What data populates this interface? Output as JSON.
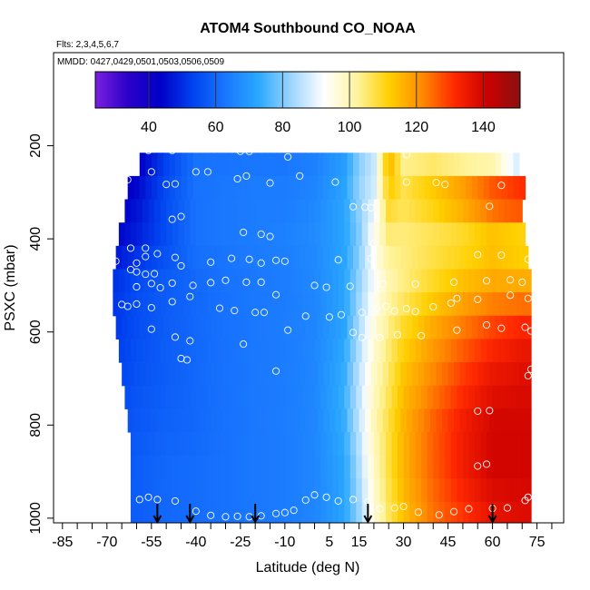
{
  "chart_data": {
    "type": "heatmap",
    "title": "ATOM4 Southbound CO_NOAA",
    "flights_note": "Flts: 2,3,4,5,6,7",
    "dates_note": "MMDD: 0427,0429,0501,0503,0506,0509",
    "xlabel": "Latitude (deg N)",
    "ylabel": "PSXC (mbar)",
    "xlim": [
      -88,
      84
    ],
    "ylim": [
      1010,
      0
    ],
    "x_ticks": [
      -85,
      -70,
      -55,
      -40,
      -25,
      -10,
      5,
      15,
      30,
      45,
      60,
      75
    ],
    "y_ticks": [
      200,
      400,
      600,
      800,
      1000
    ],
    "colorbar": {
      "min": 24,
      "max": 151,
      "ticks": [
        40,
        60,
        80,
        100,
        120,
        140
      ],
      "separators": [
        40,
        60,
        80,
        100,
        120,
        140
      ],
      "colors": [
        "#7b20e0",
        "#2a00c8",
        "#0000c8",
        "#0044f0",
        "#1a78ff",
        "#2aa8ff",
        "#9dd6ff",
        "#ffffff",
        "#fff4a0",
        "#ffd000",
        "#ff8a00",
        "#ff2800",
        "#cc0000",
        "#8a1010"
      ]
    },
    "layers": [
      {
        "p": 240,
        "lat_min": -59,
        "lat_max": 69
      },
      {
        "p": 290,
        "lat_min": -63,
        "lat_max": 71
      },
      {
        "p": 340,
        "lat_min": -64,
        "lat_max": 70
      },
      {
        "p": 390,
        "lat_min": -66,
        "lat_max": 71
      },
      {
        "p": 440,
        "lat_min": -67,
        "lat_max": 72
      },
      {
        "p": 490,
        "lat_min": -68,
        "lat_max": 73
      },
      {
        "p": 540,
        "lat_min": -68,
        "lat_max": 73
      },
      {
        "p": 590,
        "lat_min": -67,
        "lat_max": 73
      },
      {
        "p": 640,
        "lat_min": -66,
        "lat_max": 73
      },
      {
        "p": 690,
        "lat_min": -65,
        "lat_max": 73
      },
      {
        "p": 740,
        "lat_min": -64,
        "lat_max": 73
      },
      {
        "p": 790,
        "lat_min": -63,
        "lat_max": 73
      },
      {
        "p": 840,
        "lat_min": -62,
        "lat_max": 73
      },
      {
        "p": 890,
        "lat_min": -62,
        "lat_max": 73
      },
      {
        "p": 940,
        "lat_min": -62,
        "lat_max": 73
      },
      {
        "p": 990,
        "lat_min": -62,
        "lat_max": 73
      }
    ],
    "field": {
      "lat_nodes": [
        -70,
        -60,
        -50,
        -40,
        -30,
        -20,
        -10,
        0,
        10,
        15,
        20,
        25,
        30,
        40,
        50,
        60,
        70
      ],
      "p_nodes": [
        200,
        300,
        400,
        500,
        600,
        700,
        800,
        900,
        1000
      ],
      "values": [
        [
          38,
          40,
          52,
          62,
          62,
          62,
          62,
          64,
          70,
          80,
          86,
          120,
          100,
          100,
          90,
          80,
          50
        ],
        [
          40,
          45,
          55,
          62,
          63,
          64,
          64,
          66,
          72,
          82,
          88,
          112,
          108,
          114,
          122,
          132,
          140
        ],
        [
          42,
          48,
          55,
          62,
          63,
          64,
          65,
          67,
          72,
          80,
          94,
          104,
          104,
          106,
          108,
          112,
          108
        ],
        [
          50,
          55,
          58,
          60,
          62,
          63,
          64,
          66,
          72,
          82,
          92,
          100,
          104,
          110,
          115,
          118,
          118
        ],
        [
          50,
          55,
          58,
          60,
          62,
          63,
          64,
          66,
          72,
          84,
          96,
          104,
          110,
          118,
          124,
          130,
          134
        ],
        [
          52,
          56,
          58,
          60,
          62,
          63,
          64,
          66,
          74,
          86,
          98,
          106,
          114,
          122,
          130,
          136,
          138
        ],
        [
          54,
          57,
          59,
          60,
          62,
          63,
          64,
          66,
          74,
          86,
          100,
          108,
          116,
          126,
          134,
          140,
          140
        ],
        [
          55,
          58,
          60,
          61,
          62,
          63,
          64,
          66,
          72,
          84,
          98,
          108,
          116,
          126,
          134,
          140,
          140
        ],
        [
          56,
          58,
          60,
          61,
          62,
          63,
          64,
          66,
          72,
          82,
          96,
          106,
          114,
          124,
          130,
          136,
          138
        ]
      ]
    },
    "observation_points": [
      [
        -67,
        205
      ],
      [
        -56,
        210
      ],
      [
        -48,
        210
      ],
      [
        -25,
        212
      ],
      [
        -22,
        212
      ],
      [
        -9,
        224
      ],
      [
        31,
        219
      ],
      [
        65,
        205
      ],
      [
        69,
        206
      ],
      [
        -77,
        240
      ],
      [
        -75,
        241
      ],
      [
        -68,
        228
      ],
      [
        -65,
        231
      ],
      [
        -64,
        239
      ],
      [
        -61,
        246
      ],
      [
        -55,
        256
      ],
      [
        -40,
        256
      ],
      [
        -36,
        256
      ],
      [
        -26,
        271
      ],
      [
        -5,
        265
      ],
      [
        7,
        278
      ],
      [
        31,
        278
      ],
      [
        41,
        279
      ],
      [
        44,
        283
      ],
      [
        63,
        285
      ],
      [
        -66,
        267
      ],
      [
        -63,
        273
      ],
      [
        -50,
        283
      ],
      [
        -47,
        282
      ],
      [
        -23,
        265
      ],
      [
        -15,
        280
      ],
      [
        13,
        331
      ],
      [
        17,
        332
      ],
      [
        19,
        333
      ],
      [
        59,
        330
      ],
      [
        -48,
        358
      ],
      [
        -45,
        352
      ],
      [
        -24,
        386
      ],
      [
        -18,
        390
      ],
      [
        -15,
        395
      ],
      [
        20,
        410
      ],
      [
        -62,
        420
      ],
      [
        -57,
        420
      ],
      [
        -53,
        432
      ],
      [
        -57,
        438
      ],
      [
        -60,
        452
      ],
      [
        -67,
        448
      ],
      [
        -47,
        440
      ],
      [
        -62,
        466
      ],
      [
        -60,
        471
      ],
      [
        -57,
        476
      ],
      [
        -54,
        475
      ],
      [
        -45,
        458
      ],
      [
        -35,
        450
      ],
      [
        -28,
        442
      ],
      [
        -22,
        444
      ],
      [
        -18,
        452
      ],
      [
        -13,
        446
      ],
      [
        -10,
        448
      ],
      [
        8,
        445
      ],
      [
        19,
        442
      ],
      [
        55,
        434
      ],
      [
        63,
        435
      ],
      [
        72,
        444
      ],
      [
        -60,
        503
      ],
      [
        -55,
        496
      ],
      [
        -52,
        505
      ],
      [
        -48,
        495
      ],
      [
        -41,
        500
      ],
      [
        -35,
        494
      ],
      [
        -30,
        489
      ],
      [
        -23,
        493
      ],
      [
        -18,
        493
      ],
      [
        -13,
        520
      ],
      [
        0,
        500
      ],
      [
        4,
        504
      ],
      [
        12,
        502
      ],
      [
        23,
        497
      ],
      [
        34,
        497
      ],
      [
        47,
        493
      ],
      [
        58,
        490
      ],
      [
        66,
        488
      ],
      [
        70,
        493
      ],
      [
        -65,
        541
      ],
      [
        -63,
        545
      ],
      [
        -60,
        540
      ],
      [
        -55,
        548
      ],
      [
        -48,
        535
      ],
      [
        -42,
        524
      ],
      [
        -32,
        549
      ],
      [
        -27,
        554
      ],
      [
        -20,
        558
      ],
      [
        -17,
        558
      ],
      [
        -3,
        566
      ],
      [
        5,
        568
      ],
      [
        9,
        563
      ],
      [
        16,
        558
      ],
      [
        21,
        550
      ],
      [
        24,
        545
      ],
      [
        27,
        555
      ],
      [
        31,
        550
      ],
      [
        34,
        556
      ],
      [
        40,
        546
      ],
      [
        46,
        538
      ],
      [
        48,
        528
      ],
      [
        55,
        530
      ],
      [
        66,
        521
      ],
      [
        72,
        528
      ],
      [
        -55,
        594
      ],
      [
        -47,
        611
      ],
      [
        -42,
        619
      ],
      [
        -24,
        626
      ],
      [
        -9,
        596
      ],
      [
        13,
        601
      ],
      [
        16,
        612
      ],
      [
        22,
        612
      ],
      [
        28,
        606
      ],
      [
        36,
        608
      ],
      [
        48,
        596
      ],
      [
        58,
        585
      ],
      [
        63,
        592
      ],
      [
        71,
        590
      ],
      [
        73,
        598
      ],
      [
        -45,
        657
      ],
      [
        -43,
        660
      ],
      [
        -13,
        684
      ],
      [
        72,
        694
      ],
      [
        73,
        680
      ],
      [
        55,
        770
      ],
      [
        59,
        769
      ],
      [
        55,
        888
      ],
      [
        58,
        884
      ],
      [
        -70,
        955
      ],
      [
        -59,
        960
      ],
      [
        -56,
        955
      ],
      [
        -53,
        960
      ],
      [
        -47,
        963
      ],
      [
        -40,
        985
      ],
      [
        -35,
        994
      ],
      [
        -30,
        997
      ],
      [
        -26,
        996
      ],
      [
        -22,
        997
      ],
      [
        -18,
        995
      ],
      [
        -13,
        990
      ],
      [
        -10,
        988
      ],
      [
        -7,
        983
      ],
      [
        -3,
        961
      ],
      [
        0,
        950
      ],
      [
        4,
        955
      ],
      [
        8,
        963
      ],
      [
        13,
        960
      ],
      [
        18,
        965
      ],
      [
        22,
        980
      ],
      [
        27,
        978
      ],
      [
        30,
        975
      ],
      [
        35,
        987
      ],
      [
        42,
        993
      ],
      [
        47,
        986
      ],
      [
        52,
        980
      ],
      [
        60,
        979
      ],
      [
        65,
        978
      ],
      [
        71,
        962
      ],
      [
        72,
        955
      ]
    ],
    "flight_arrows": [
      -53,
      -42,
      -20,
      18,
      60
    ],
    "grid": false,
    "legend": "colorbar-top"
  }
}
